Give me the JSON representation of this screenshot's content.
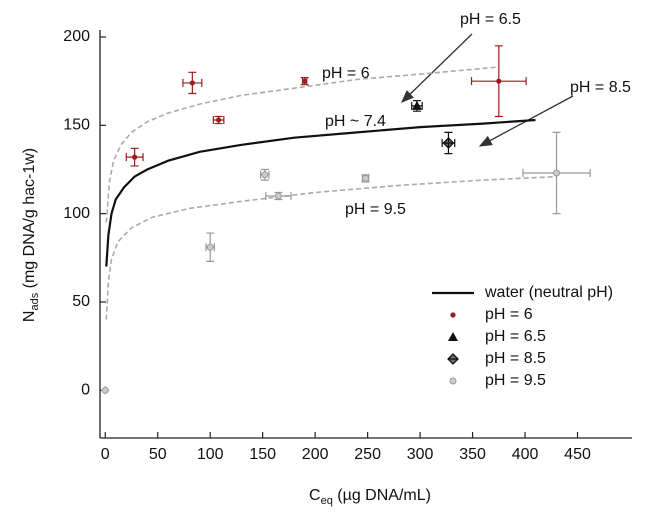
{
  "chart_data": {
    "type": "scatter",
    "x_label": {
      "main": "C",
      "sub": "eq",
      "rest": " (µg DNA/mL)"
    },
    "y_label": {
      "main": "N",
      "sub": "ads",
      "rest": " (mg DNA/g hac-1w)"
    },
    "xlim": [
      -5,
      500
    ],
    "ylim": [
      -27,
      200
    ],
    "xticks": [
      0,
      50,
      100,
      150,
      200,
      250,
      300,
      350,
      400,
      450
    ],
    "yticks": [
      0,
      50,
      100,
      150,
      200
    ],
    "legend": "lower right",
    "series": [
      {
        "name": "water (neutral pH)",
        "type": "line",
        "color": "#111111",
        "x": [
          1,
          3,
          6,
          10,
          18,
          28,
          40,
          60,
          90,
          130,
          180,
          240,
          300,
          360,
          410
        ],
        "values": [
          70,
          88,
          100,
          108,
          115,
          121,
          125,
          130,
          135,
          139,
          143,
          146,
          149,
          151,
          153
        ]
      },
      {
        "name": "pH = 6",
        "type": "scatter",
        "marker": "dot",
        "color": "#9b1c1c",
        "x": [
          28,
          83,
          108,
          190,
          375
        ],
        "values": [
          132,
          174,
          153,
          175,
          175
        ],
        "xerr": [
          8,
          9,
          5,
          2,
          26
        ],
        "yerr": [
          5,
          6,
          2,
          2,
          20
        ]
      },
      {
        "name": "pH = 6.5",
        "type": "scatter",
        "marker": "triangle",
        "color": "#111111",
        "x": [
          297
        ],
        "values": [
          161
        ],
        "xerr": [
          5
        ],
        "yerr": [
          3
        ]
      },
      {
        "name": "pH = 8.5",
        "type": "scatter",
        "marker": "diamond",
        "color": "#111111",
        "x": [
          327
        ],
        "values": [
          140
        ],
        "xerr": [
          6
        ],
        "yerr": [
          6
        ]
      },
      {
        "name": "pH = 9.5",
        "type": "scatter",
        "marker": "circle",
        "color": "#999999",
        "x": [
          0,
          100,
          152,
          165,
          248,
          430
        ],
        "values": [
          0,
          81,
          122,
          110,
          120,
          123
        ],
        "xerr": [
          0,
          4,
          4,
          12,
          3,
          32
        ],
        "yerr": [
          0,
          8,
          3,
          2,
          2,
          23
        ]
      }
    ],
    "curves": [
      {
        "color": "#aaaaaa",
        "dash": true,
        "x": [
          1,
          4,
          8,
          15,
          25,
          40,
          60,
          90,
          130,
          180,
          240,
          300,
          375
        ],
        "values": [
          95,
          118,
          130,
          139,
          146,
          152,
          157,
          162,
          167,
          171,
          176,
          179,
          183
        ]
      },
      {
        "color": "#aaaaaa",
        "dash": true,
        "x": [
          1,
          3,
          6,
          12,
          25,
          45,
          80,
          130,
          200,
          280,
          360,
          430
        ],
        "values": [
          40,
          62,
          74,
          84,
          92,
          98,
          103,
          107,
          112,
          116,
          119,
          121
        ]
      }
    ],
    "annotations": [
      "pH = 6",
      "pH ~ 7.4",
      "pH = 9.5",
      "pH = 6.5",
      "pH = 8.5"
    ]
  }
}
